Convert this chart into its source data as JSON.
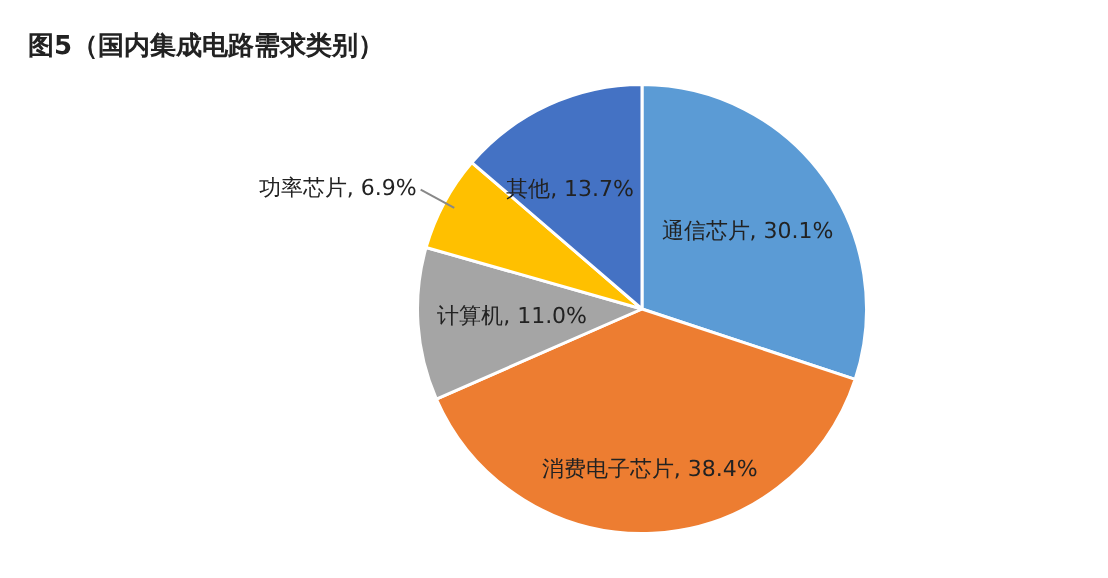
{
  "chart_data": {
    "type": "pie",
    "title": "图5（国内集成电路需求类别）",
    "categories": [
      "通信芯片",
      "消费电子芯片",
      "计算机",
      "功率芯片",
      "其他"
    ],
    "values": [
      30.1,
      38.4,
      11.0,
      6.9,
      13.7
    ],
    "value_labels": [
      "30.1%",
      "38.4%",
      "11.0%",
      "6.9%",
      "13.7%"
    ],
    "colors": [
      "#5b9bd5",
      "#ed7d31",
      "#a5a5a5",
      "#ffc000",
      "#4472c4"
    ],
    "legend": false
  }
}
